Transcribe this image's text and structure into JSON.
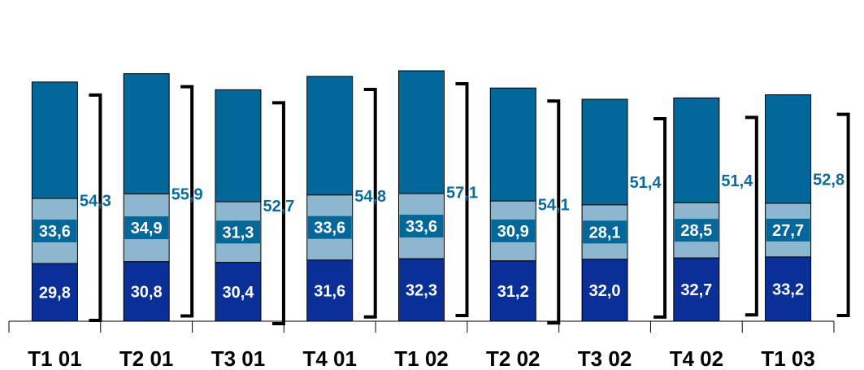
{
  "chart_data": {
    "type": "bar",
    "stacked": true,
    "categories": [
      "T1 01",
      "T2 01",
      "T3 01",
      "T4 01",
      "T1 02",
      "T2 02",
      "T3 02",
      "T4 02",
      "T1 03"
    ],
    "series": [
      {
        "values": [
          29.8,
          30.8,
          30.4,
          31.6,
          32.3,
          31.2,
          32.0,
          32.7,
          33.2
        ],
        "labels": [
          "29,8",
          "30,8",
          "30,4",
          "31,6",
          "32,3",
          "31,2",
          "32,0",
          "32,7",
          "33,2"
        ],
        "color": "#0a2f96"
      },
      {
        "values": [
          33.6,
          34.9,
          31.3,
          33.6,
          33.6,
          30.9,
          28.1,
          28.5,
          27.7
        ],
        "labels": [
          "33,6",
          "34,9",
          "31,3",
          "33,6",
          "33,6",
          "30,9",
          "28,1",
          "28,5",
          "27,7"
        ],
        "color": "#8cb7cf"
      },
      {
        "values": [
          60.1,
          62.1,
          57.8,
          61.2,
          63.4,
          58.3,
          54.5,
          54.1,
          56.0
        ],
        "color": "#03679a"
      }
    ],
    "bracket_labels": [
      "54,3",
      "55,9",
      "52,7",
      "54,8",
      "57,1",
      "54,1",
      "51,4",
      "51,4",
      "52,8"
    ],
    "bracket_color": "#0a6a9e",
    "ylim": [
      0,
      165
    ],
    "grid": false,
    "legend": "none"
  }
}
